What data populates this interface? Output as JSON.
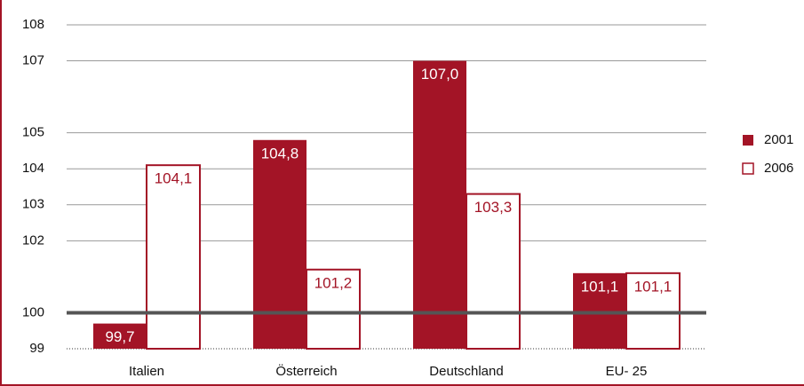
{
  "chart_data": {
    "type": "bar",
    "categories": [
      "Italien",
      "Österreich",
      "Deutschland",
      "EU- 25"
    ],
    "series": [
      {
        "name": "2001",
        "color": "#a31426",
        "fill": true,
        "values": [
          99.7,
          104.8,
          107.0,
          101.1
        ],
        "value_labels": [
          "99,7",
          "104,8",
          "107,0",
          "101,1"
        ]
      },
      {
        "name": "2006",
        "color": "#a31426",
        "fill": false,
        "values": [
          104.1,
          101.2,
          103.3,
          101.1
        ],
        "value_labels": [
          "104,1",
          "101,2",
          "103,3",
          "101,1"
        ]
      }
    ],
    "ylim": [
      99,
      108
    ],
    "yticks": [
      99,
      100,
      102,
      103,
      104,
      105,
      107,
      108
    ],
    "grid": true,
    "reference_line": 100,
    "legend": "right"
  }
}
